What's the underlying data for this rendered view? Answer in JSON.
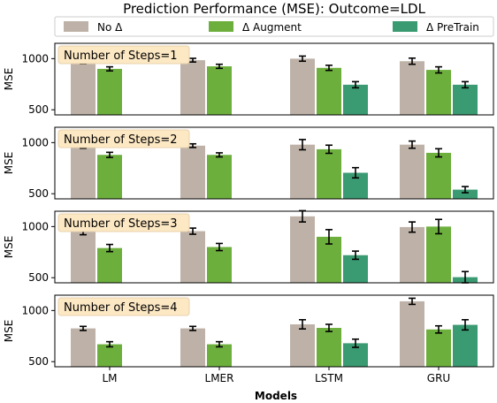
{
  "chart_data": {
    "type": "bar",
    "title": "Prediction Performance (MSE): Outcome=LDL",
    "xlabel": "Models",
    "ylabel": "MSE",
    "categories": [
      "LM",
      "LMER",
      "LSTM",
      "GRU"
    ],
    "yticks": [
      500,
      1000
    ],
    "ylim": [
      450,
      1150
    ],
    "legend_position": "top",
    "series": [
      {
        "name": "No Δ",
        "color": "#beb2a8"
      },
      {
        "name": "Δ Augment",
        "color": "#6daf3d"
      },
      {
        "name": "Δ PreTrain",
        "color": "#3a9a72"
      }
    ],
    "panels": [
      {
        "label": "Number of Steps=1",
        "values": [
          [
            965,
            900,
            null
          ],
          [
            985,
            925,
            null
          ],
          [
            1000,
            910,
            745
          ],
          [
            975,
            890,
            745
          ]
        ],
        "errors": [
          [
            15,
            20,
            null
          ],
          [
            18,
            20,
            null
          ],
          [
            25,
            25,
            30
          ],
          [
            30,
            30,
            30
          ]
        ]
      },
      {
        "label": "Number of Steps=2",
        "values": [
          [
            970,
            880,
            null
          ],
          [
            970,
            880,
            null
          ],
          [
            980,
            935,
            705
          ],
          [
            980,
            900,
            540
          ]
        ],
        "errors": [
          [
            25,
            25,
            null
          ],
          [
            18,
            20,
            null
          ],
          [
            50,
            40,
            50
          ],
          [
            35,
            40,
            30
          ]
        ]
      },
      {
        "label": "Number of Steps=3",
        "values": [
          [
            950,
            790,
            null
          ],
          [
            955,
            800,
            null
          ],
          [
            1100,
            900,
            720
          ],
          [
            995,
            1000,
            505
          ]
        ],
        "errors": [
          [
            30,
            35,
            null
          ],
          [
            30,
            35,
            null
          ],
          [
            55,
            70,
            40
          ],
          [
            50,
            70,
            55
          ]
        ]
      },
      {
        "label": "Number of Steps=4",
        "values": [
          [
            825,
            670,
            null
          ],
          [
            825,
            670,
            null
          ],
          [
            865,
            830,
            680
          ],
          [
            1090,
            815,
            860
          ]
        ],
        "errors": [
          [
            20,
            25,
            null
          ],
          [
            20,
            25,
            null
          ],
          [
            45,
            35,
            40
          ],
          [
            30,
            35,
            50
          ]
        ]
      }
    ]
  }
}
